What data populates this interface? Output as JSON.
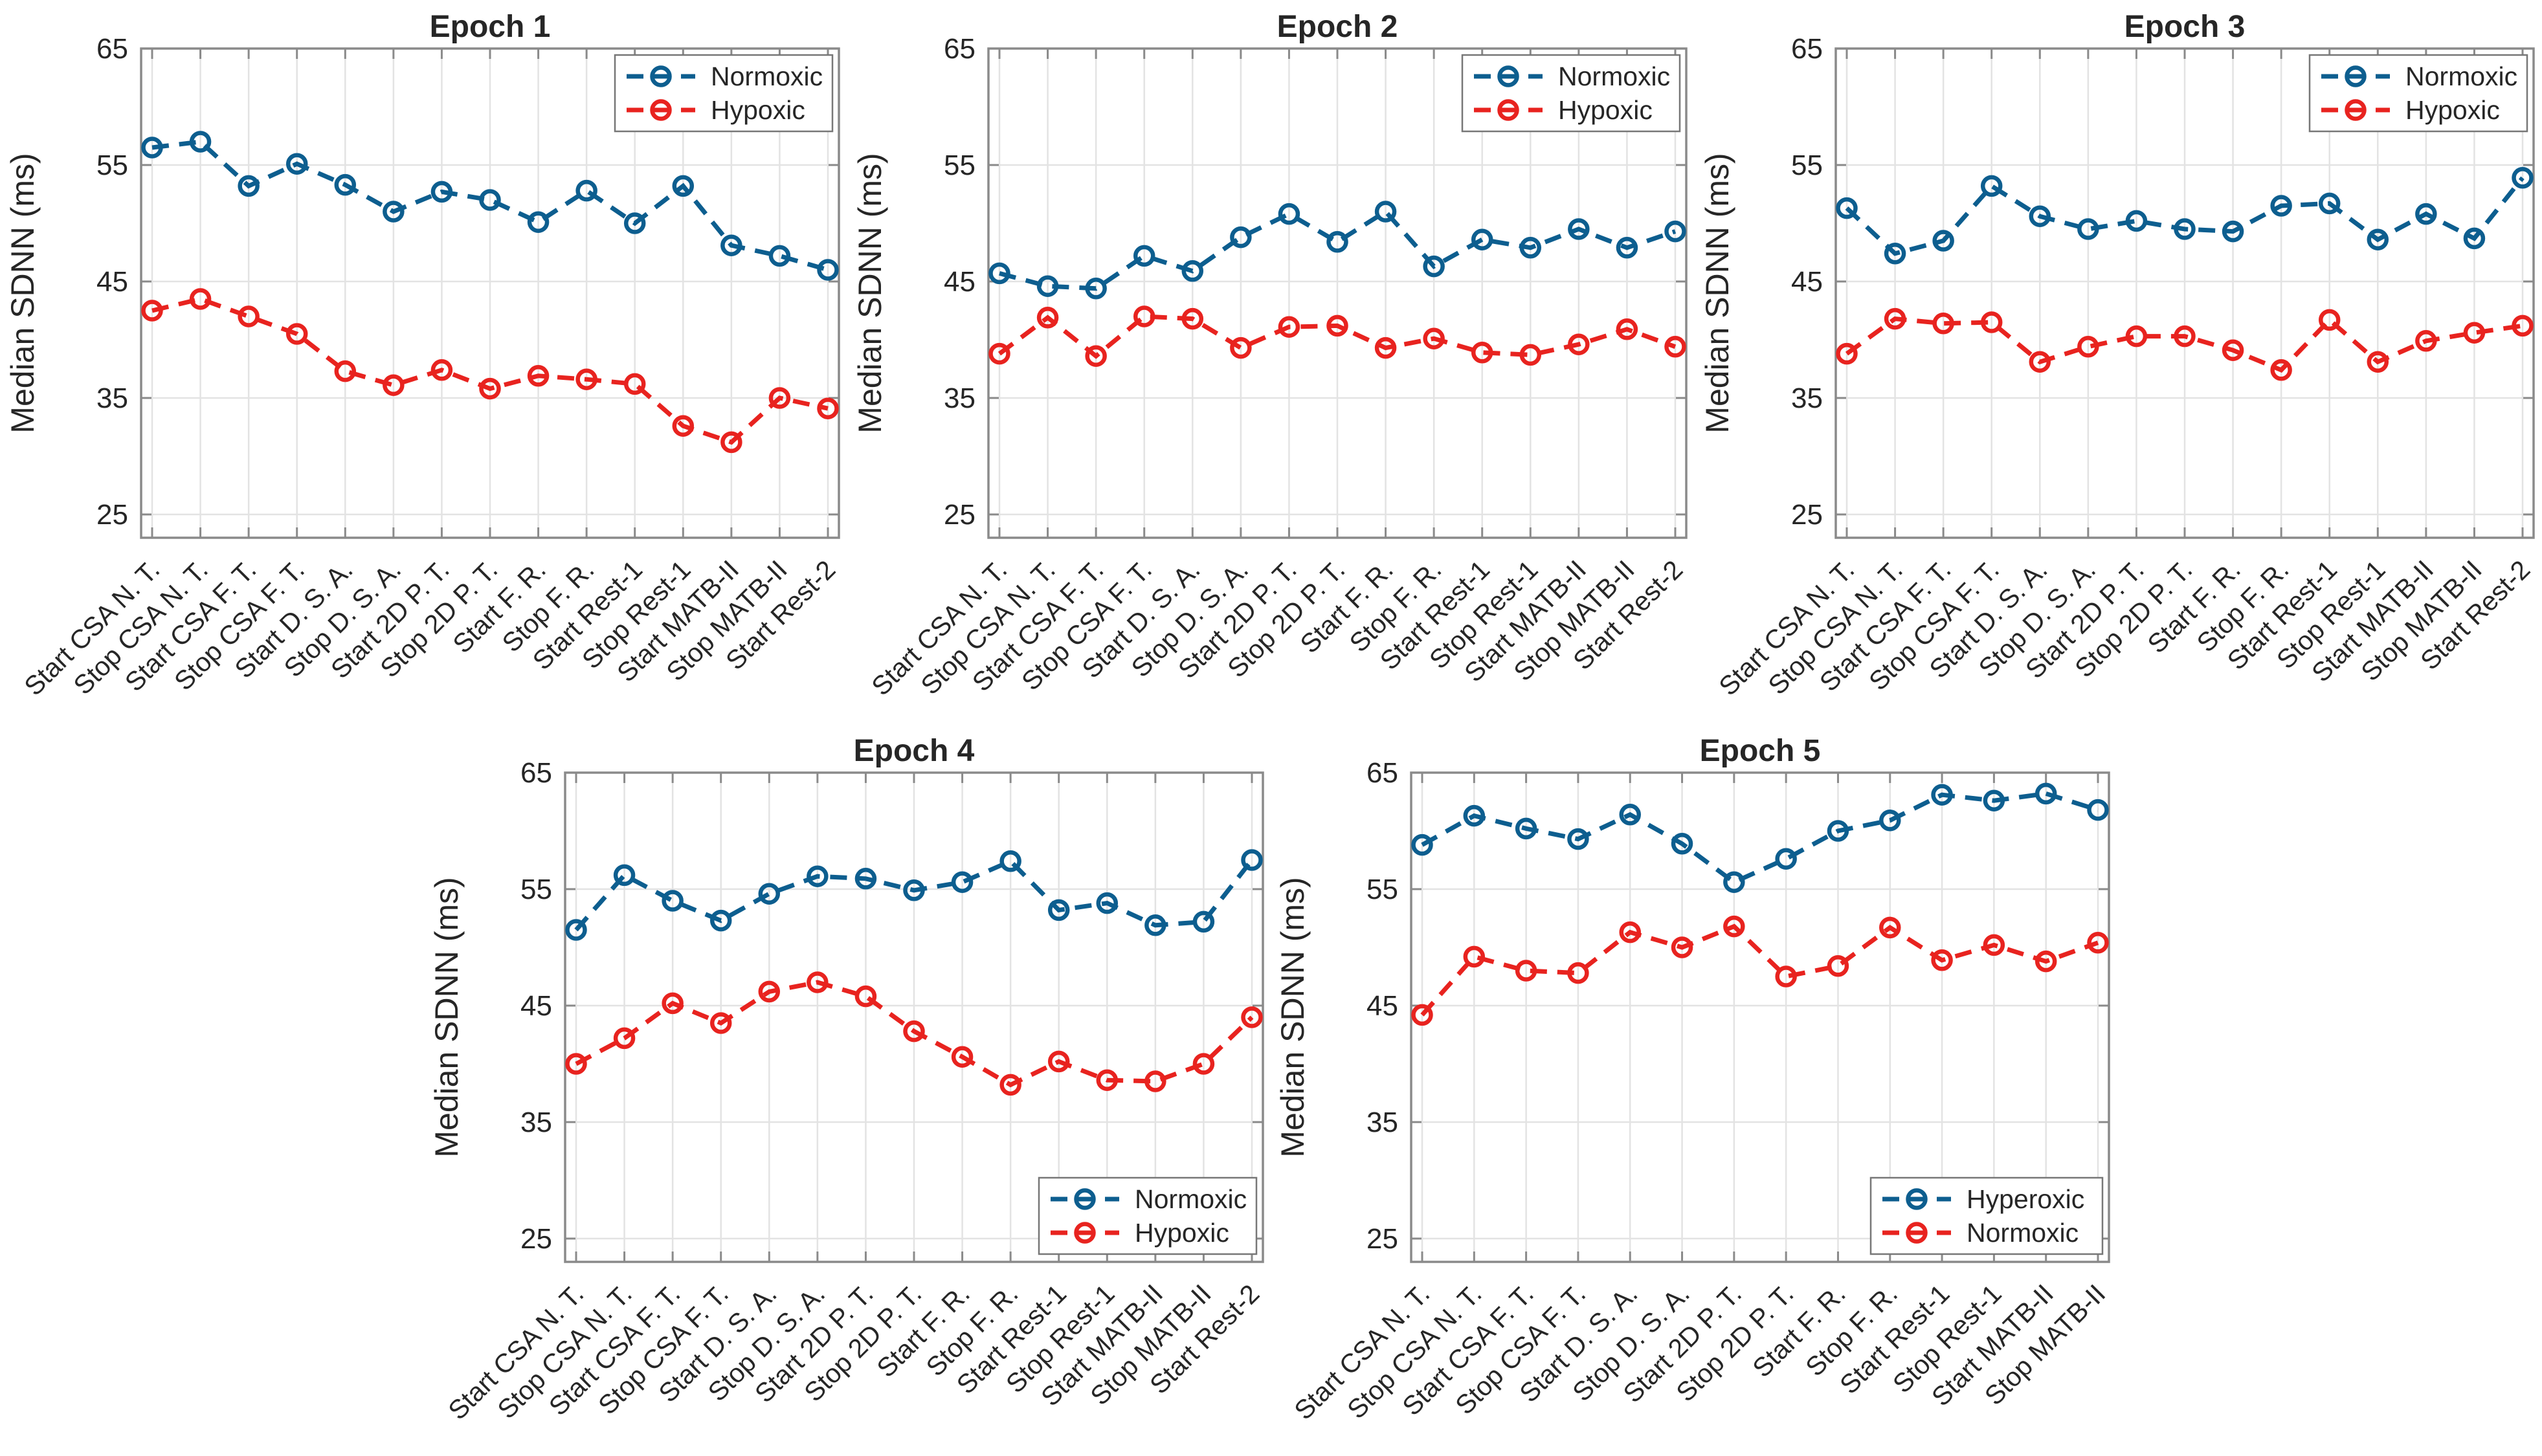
{
  "palette": {
    "background": "#ffffff",
    "axis_box": "#8a8a8a",
    "tick": "#8a8a8a",
    "grid": "#e3e3e3",
    "text": "#262626",
    "normoxic_blue": "#0d5e8f",
    "hypoxic_red": "#e8231f"
  },
  "chart_data": [
    {
      "type": "line",
      "title": "Epoch 1",
      "ylabel": "Median SDNN (ms)",
      "ylim": [
        23,
        65
      ],
      "yticks": [
        25,
        35,
        45,
        55,
        65
      ],
      "grid": true,
      "legend_position": "top-right",
      "categories": [
        "Start CSA N. T.",
        "Stop CSA N. T.",
        "Start CSA F. T.",
        "Stop CSA F. T.",
        "Start D. S. A.",
        "Stop D. S. A.",
        "Start 2D P. T.",
        "Stop 2D P. T.",
        "Start F. R.",
        "Stop F. R.",
        "Start Rest-1",
        "Stop Rest-1",
        "Start MATB-II",
        "Stop MATB-II",
        "Start Rest-2"
      ],
      "series": [
        {
          "name": "Normoxic",
          "color": "#0d5e8f",
          "values": [
            56.5,
            57.0,
            53.2,
            55.1,
            53.3,
            51.0,
            52.7,
            52.0,
            50.1,
            52.8,
            50.0,
            53.2,
            48.1,
            47.2,
            46.0
          ]
        },
        {
          "name": "Hypoxic",
          "color": "#e8231f",
          "values": [
            42.5,
            43.5,
            42.0,
            40.5,
            37.3,
            36.1,
            37.4,
            35.8,
            36.9,
            36.6,
            36.2,
            32.6,
            31.2,
            35.0,
            34.1
          ]
        }
      ]
    },
    {
      "type": "line",
      "title": "Epoch 2",
      "ylabel": "Median SDNN (ms)",
      "ylim": [
        23,
        65
      ],
      "yticks": [
        25,
        35,
        45,
        55,
        65
      ],
      "grid": true,
      "legend_position": "top-right",
      "categories": [
        "Start CSA N. T.",
        "Stop CSA N. T.",
        "Start CSA F. T.",
        "Stop CSA F. T.",
        "Start D. S. A.",
        "Stop D. S. A.",
        "Start 2D P. T.",
        "Stop 2D P. T.",
        "Start F. R.",
        "Stop F. R.",
        "Start Rest-1",
        "Stop Rest-1",
        "Start MATB-II",
        "Stop MATB-II",
        "Start Rest-2"
      ],
      "series": [
        {
          "name": "Normoxic",
          "color": "#0d5e8f",
          "values": [
            45.7,
            44.6,
            44.4,
            47.2,
            45.9,
            48.8,
            50.8,
            48.4,
            51.0,
            46.3,
            48.6,
            47.9,
            49.5,
            47.9,
            49.3
          ]
        },
        {
          "name": "Hypoxic",
          "color": "#e8231f",
          "values": [
            38.8,
            41.9,
            38.6,
            42.0,
            41.8,
            39.3,
            41.1,
            41.2,
            39.3,
            40.1,
            38.9,
            38.7,
            39.6,
            40.9,
            39.4
          ]
        }
      ]
    },
    {
      "type": "line",
      "title": "Epoch 3",
      "ylabel": "Median SDNN (ms)",
      "ylim": [
        23,
        65
      ],
      "yticks": [
        25,
        35,
        45,
        55,
        65
      ],
      "grid": true,
      "legend_position": "top-right",
      "categories": [
        "Start CSA N. T.",
        "Stop CSA N. T.",
        "Start CSA F. T.",
        "Stop CSA F. T.",
        "Start D. S. A.",
        "Stop D. S. A.",
        "Start 2D P. T.",
        "Stop 2D P. T.",
        "Start F. R.",
        "Stop F. R.",
        "Start Rest-1",
        "Stop Rest-1",
        "Start MATB-II",
        "Stop MATB-II",
        "Start Rest-2"
      ],
      "series": [
        {
          "name": "Normoxic",
          "color": "#0d5e8f",
          "values": [
            51.3,
            47.4,
            48.5,
            53.2,
            50.6,
            49.5,
            50.2,
            49.5,
            49.3,
            51.5,
            51.7,
            48.6,
            50.8,
            48.7,
            53.9
          ]
        },
        {
          "name": "Hypoxic",
          "color": "#e8231f",
          "values": [
            38.8,
            41.8,
            41.4,
            41.5,
            38.1,
            39.4,
            40.3,
            40.3,
            39.1,
            37.4,
            41.7,
            38.1,
            39.9,
            40.6,
            41.2
          ]
        }
      ]
    },
    {
      "type": "line",
      "title": "Epoch 4",
      "ylabel": "Median SDNN (ms)",
      "ylim": [
        23,
        65
      ],
      "yticks": [
        25,
        35,
        45,
        55,
        65
      ],
      "grid": true,
      "legend_position": "bottom-right",
      "categories": [
        "Start CSA N. T.",
        "Stop CSA N. T.",
        "Start CSA F. T.",
        "Stop CSA F. T.",
        "Start D. S. A.",
        "Stop D. S. A.",
        "Start 2D P. T.",
        "Stop 2D P. T.",
        "Start F. R.",
        "Stop F. R.",
        "Start Rest-1",
        "Stop Rest-1",
        "Start MATB-II",
        "Stop MATB-II",
        "Start Rest-2"
      ],
      "series": [
        {
          "name": "Normoxic",
          "color": "#0d5e8f",
          "values": [
            51.5,
            56.2,
            54.0,
            52.3,
            54.6,
            56.1,
            55.9,
            54.9,
            55.6,
            57.4,
            53.2,
            53.8,
            51.9,
            52.2,
            57.5
          ]
        },
        {
          "name": "Hypoxic",
          "color": "#e8231f",
          "values": [
            40.0,
            42.2,
            45.2,
            43.5,
            46.2,
            47.0,
            45.8,
            42.8,
            40.6,
            38.2,
            40.2,
            38.6,
            38.5,
            40.0,
            44.0
          ]
        }
      ]
    },
    {
      "type": "line",
      "title": "Epoch 5",
      "ylabel": "Median SDNN (ms)",
      "ylim": [
        23,
        65
      ],
      "yticks": [
        25,
        35,
        45,
        55,
        65
      ],
      "grid": true,
      "legend_position": "bottom-right",
      "categories": [
        "Start CSA N. T.",
        "Stop CSA N. T.",
        "Start CSA F. T.",
        "Stop CSA F. T.",
        "Start D. S. A.",
        "Stop D. S. A.",
        "Start 2D P. T.",
        "Stop 2D P. T.",
        "Start F. R.",
        "Stop F. R.",
        "Start Rest-1",
        "Stop Rest-1",
        "Start MATB-II",
        "Stop MATB-II"
      ],
      "series": [
        {
          "name": "Hyperoxic",
          "color": "#0d5e8f",
          "values": [
            58.8,
            61.3,
            60.2,
            59.3,
            61.4,
            58.9,
            55.6,
            57.6,
            60.0,
            60.9,
            63.1,
            62.6,
            63.2,
            61.8
          ]
        },
        {
          "name": "Normoxic",
          "color": "#e8231f",
          "values": [
            44.2,
            49.2,
            48.0,
            47.8,
            51.3,
            50.0,
            51.8,
            47.5,
            48.4,
            51.7,
            48.9,
            50.2,
            48.8,
            50.4
          ]
        }
      ]
    }
  ]
}
